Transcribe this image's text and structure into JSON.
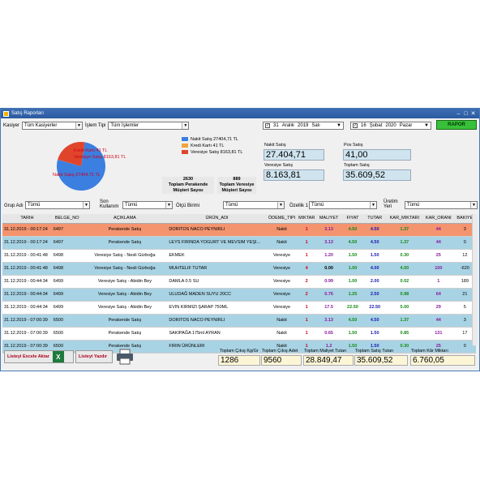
{
  "window": {
    "title": "Satış Raporları"
  },
  "filters_top": {
    "kasiyer_label": "Kasiyer",
    "kasiyer_value": "Tüm Kasiyerler",
    "islem_label": "İşlem Tipi",
    "islem_value": "Tüm İşlemler",
    "date1": {
      "day": "31",
      "month": "Aralık",
      "year": "2019",
      "weekday": "Salı"
    },
    "date2": {
      "day": "16",
      "month": "Şubat",
      "year": "2020",
      "weekday": "Pazar"
    },
    "rapor_label": "RAPOR"
  },
  "chart_data": {
    "type": "pie",
    "slices": [
      {
        "name": "Nakit Satış",
        "value": 27404.71,
        "label": "Nakit Satış 27404,71 TL",
        "color": "#3b7fe0"
      },
      {
        "name": "Kredi Kartı",
        "value": 41,
        "label": "Kredi Kartı 41 TL",
        "color": "#f2a43c"
      },
      {
        "name": "Veresiye Satış",
        "value": 8163.81,
        "label": "Veresiye Satış 8163,81 TL",
        "color": "#e0452b"
      }
    ],
    "legend": [
      "Nakit Satış 27404,71 TL",
      "Kredi Kartı 41 TL",
      "Veresiye Satış 8163,81 TL"
    ]
  },
  "summary": {
    "perakende_count": "2630",
    "perakende_label": "Toplam Perakende Müşteri Sayısı",
    "veresiye_count": "889",
    "veresiye_label": "Toplam Veresiye Müşteri Sayısı"
  },
  "stats": {
    "nakit_label": "Nakit Satış",
    "nakit_value": "27.404,71",
    "pos_label": "Pos Satış",
    "pos_value": "41,00",
    "veresiye_label": "Veresiye Satış",
    "veresiye_value": "8.163,81",
    "toplam_label": "Toplam Satış",
    "toplam_value": "35.609,52"
  },
  "filters_mid": {
    "grup_label": "Grup Adı",
    "grup_value": "Tümü",
    "son_label": "Son Kullanım",
    "son_value": "Tümü",
    "olcu_label": "Ölçü Birimi",
    "olcu_value": "Tümü",
    "ozellik_label": "Özellik 1",
    "ozellik_value": "Tümü",
    "uretim_label": "Üretim Yeri",
    "uretim_value": "Tümü"
  },
  "table": {
    "headers": [
      "TARIH",
      "BELGE_NO",
      "AÇIKLAMA",
      "ÜRÜN_ADI",
      "ÖDEME_TIPI",
      "MIKTAR",
      "MALIYET",
      "FIYAT",
      "TUTAR",
      "KAR_MIKTARI",
      "KAR_ORANI",
      "BAKIYE"
    ],
    "rows": [
      {
        "style": "orange",
        "cells": [
          "31.12.2019 - 00:17:24",
          "6497",
          "Perakende Satış",
          "DORITOS NACO PEYNIRLI",
          "Nakit",
          "1",
          "3.13",
          "4.50",
          "4.50",
          "1.37",
          "44",
          "3"
        ]
      },
      {
        "style": "blue",
        "cells": [
          "31.12.2019 - 00:17:24",
          "6497",
          "Perakende Satış",
          "LEYS FIRINDA YOGURT VE MEVSIM YEŞI...",
          "Nakit",
          "1",
          "3.13",
          "4.50",
          "4.50",
          "1.37",
          "44",
          "0"
        ]
      },
      {
        "style": "white",
        "cells": [
          "31.12.2019 - 00:41:48",
          "6498",
          "Veresiye Satış - Nesli Gürboğa",
          "EKMEK",
          "Veresiye",
          "1",
          "1.20",
          "1.50",
          "1.50",
          "0.30",
          "25",
          "12"
        ]
      },
      {
        "style": "blue",
        "cells": [
          "31.12.2019 - 00:41:48",
          "6498",
          "Veresiye Satış - Nesli Gürboğa",
          "MUHTELIF TUTAR",
          "Veresiye",
          "4",
          "0.00",
          "1.00",
          "4.00",
          "4.00",
          "100",
          "-620"
        ]
      },
      {
        "style": "white",
        "cells": [
          "31.12.2019 - 00:44:34",
          "6499",
          "Veresiye Satış - Abidin Bey",
          "DAMLA 0.5 SU",
          "Veresiye",
          "2",
          "0.99",
          "1.00",
          "2.00",
          "0.02",
          "1",
          "189"
        ]
      },
      {
        "style": "blue",
        "cells": [
          "31.12.2019 - 00:44:34",
          "6499",
          "Veresiye Satış - Abidin Bey",
          "ULUDAĞ MADEN SUYU 20CC",
          "Veresiye",
          "2",
          "0.76",
          "1.25",
          "2.50",
          "0.98",
          "64",
          "21"
        ]
      },
      {
        "style": "white",
        "cells": [
          "31.12.2019 - 00:44:34",
          "6499",
          "Veresiye Satış - Abidin Bey",
          "EVIN KIRMIZI ŞARAP 750ML",
          "Veresiye",
          "1",
          "17.5",
          "22.50",
          "22.50",
          "5.00",
          "29",
          "5"
        ]
      },
      {
        "style": "blue",
        "cells": [
          "31.12.2019 - 07:00:39",
          "6500",
          "Perakende Satış",
          "DORITOS NACO PEYNIRLI",
          "Nakit",
          "1",
          "3.13",
          "4.50",
          "4.50",
          "1.37",
          "44",
          "3"
        ]
      },
      {
        "style": "white",
        "cells": [
          "31.12.2019 - 07:00:39",
          "6500",
          "Perakende Satış",
          "SAKIPAĞA 175ml AYRAN",
          "Nakit",
          "1",
          "0.65",
          "1.50",
          "1.50",
          "0.85",
          "131",
          "17"
        ]
      },
      {
        "style": "blue",
        "cells": [
          "31.12.2019 - 07:00:39",
          "6500",
          "Perakende Satış",
          "FIRIN ÜRÜNLERI",
          "Nakit",
          "1",
          "1.2",
          "1.50",
          "1.50",
          "0.30",
          "25",
          "0"
        ]
      }
    ]
  },
  "bottom": {
    "excel_label": "Listeyi Excele Aktar",
    "print_label": "Listeyi Yazdır",
    "totals": [
      {
        "label": "Toplam Çıkış Kg/Gr",
        "value": "1286"
      },
      {
        "label": "Toplam Çıkış Adet",
        "value": "9560"
      },
      {
        "label": "Toplam Maliyet Tutarı",
        "value": "28.849,47"
      },
      {
        "label": "Toplam Satış Tutarı",
        "value": "35.609,52"
      },
      {
        "label": "Toplam Kâr Miktarı",
        "value": "6.760,05"
      }
    ]
  }
}
